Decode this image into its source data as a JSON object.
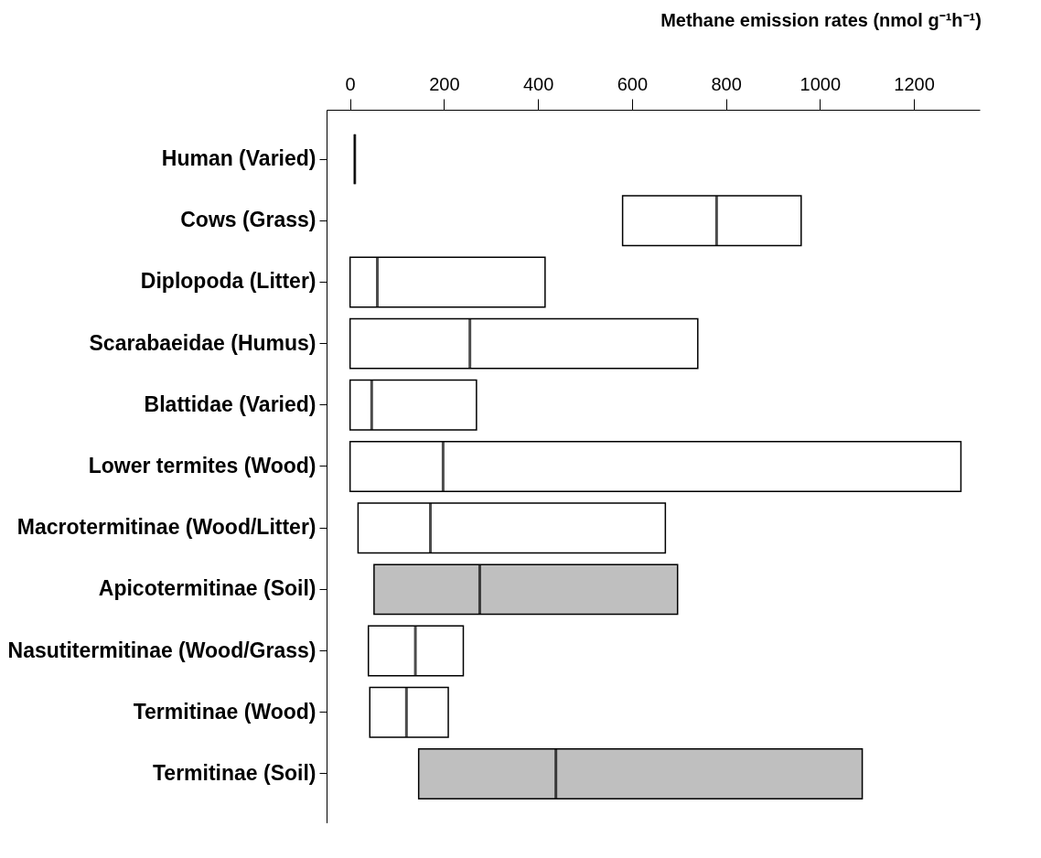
{
  "chart_data": {
    "type": "box",
    "orientation": "horizontal",
    "xlabel": "Methane emission rates (nmol g⁻¹h⁻¹)",
    "categories": [
      "Human (Varied)",
      "Cows (Grass)",
      "Diplopoda (Litter)",
      "Scarabaeidae (Humus)",
      "Blattidae (Varied)",
      "Lower termites (Wood)",
      "Macrotermitinae (Wood/Litter)",
      "Apicotermitinae (Soil)",
      "Nasutitermitinae (Wood/Grass)",
      "Termitinae (Wood)",
      "Termitinae (Soil)"
    ],
    "boxes": [
      {
        "low": 10,
        "q1": 10,
        "median": 10,
        "q3": 10,
        "high": 10
      },
      {
        "low": 580,
        "q1": 580,
        "median": 780,
        "q3": 960,
        "high": 960
      },
      {
        "low": 0,
        "q1": 0,
        "median": 58,
        "q3": 415,
        "high": 415
      },
      {
        "low": 0,
        "q1": 0,
        "median": 255,
        "q3": 740,
        "high": 740
      },
      {
        "low": 0,
        "q1": 0,
        "median": 46,
        "q3": 269,
        "high": 269
      },
      {
        "low": 0,
        "q1": 0,
        "median": 198,
        "q3": 1300,
        "high": 1300
      },
      {
        "low": 17,
        "q1": 17,
        "median": 171,
        "q3": 671,
        "high": 671
      },
      {
        "low": 51,
        "q1": 51,
        "median": 276,
        "q3": 697,
        "high": 697
      },
      {
        "low": 39,
        "q1": 39,
        "median": 139,
        "q3": 241,
        "high": 241
      },
      {
        "low": 42,
        "q1": 42,
        "median": 120,
        "q3": 209,
        "high": 209
      },
      {
        "low": 146,
        "q1": 146,
        "median": 438,
        "q3": 1090,
        "high": 1090
      }
    ],
    "colors": [
      "#000000",
      "#ffffff",
      "#ffffff",
      "#ffffff",
      "#ffffff",
      "#ffffff",
      "#ffffff",
      "#bfbfbf",
      "#ffffff",
      "#ffffff",
      "#bfbfbf"
    ],
    "xlim": [
      -50,
      1340
    ],
    "xticks": [
      0,
      200,
      400,
      600,
      800,
      1000,
      1200
    ],
    "grid": false
  }
}
